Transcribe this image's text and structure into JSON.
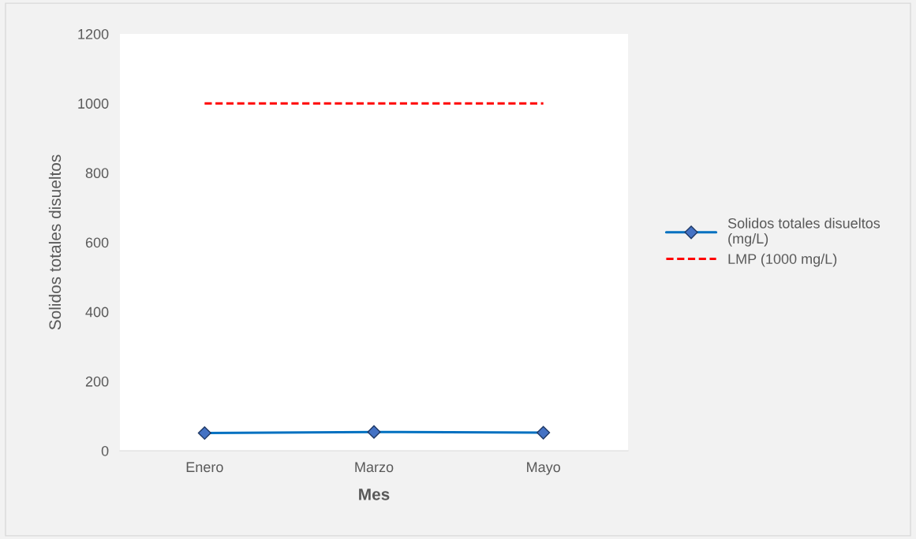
{
  "chart_data": {
    "type": "line",
    "xlabel": "Mes",
    "ylabel": "Solidos totales disueltos",
    "categories": [
      "Enero",
      "Marzo",
      "Mayo"
    ],
    "series": [
      {
        "name": "Solidos totales disueltos\n(mg/L)",
        "color": "#0070c0",
        "values": [
          51,
          54,
          52
        ],
        "marker": "diamond",
        "line_style": "solid"
      },
      {
        "name": "LMP (1000 mg/L)",
        "color": "#ff0000",
        "values": [
          1000,
          1000,
          1000
        ],
        "marker": "none",
        "line_style": "dashed"
      }
    ],
    "ylim": [
      0,
      1200
    ],
    "yticks": [
      0,
      200,
      400,
      600,
      800,
      1000,
      1200
    ],
    "grid": false,
    "legend": "right"
  }
}
